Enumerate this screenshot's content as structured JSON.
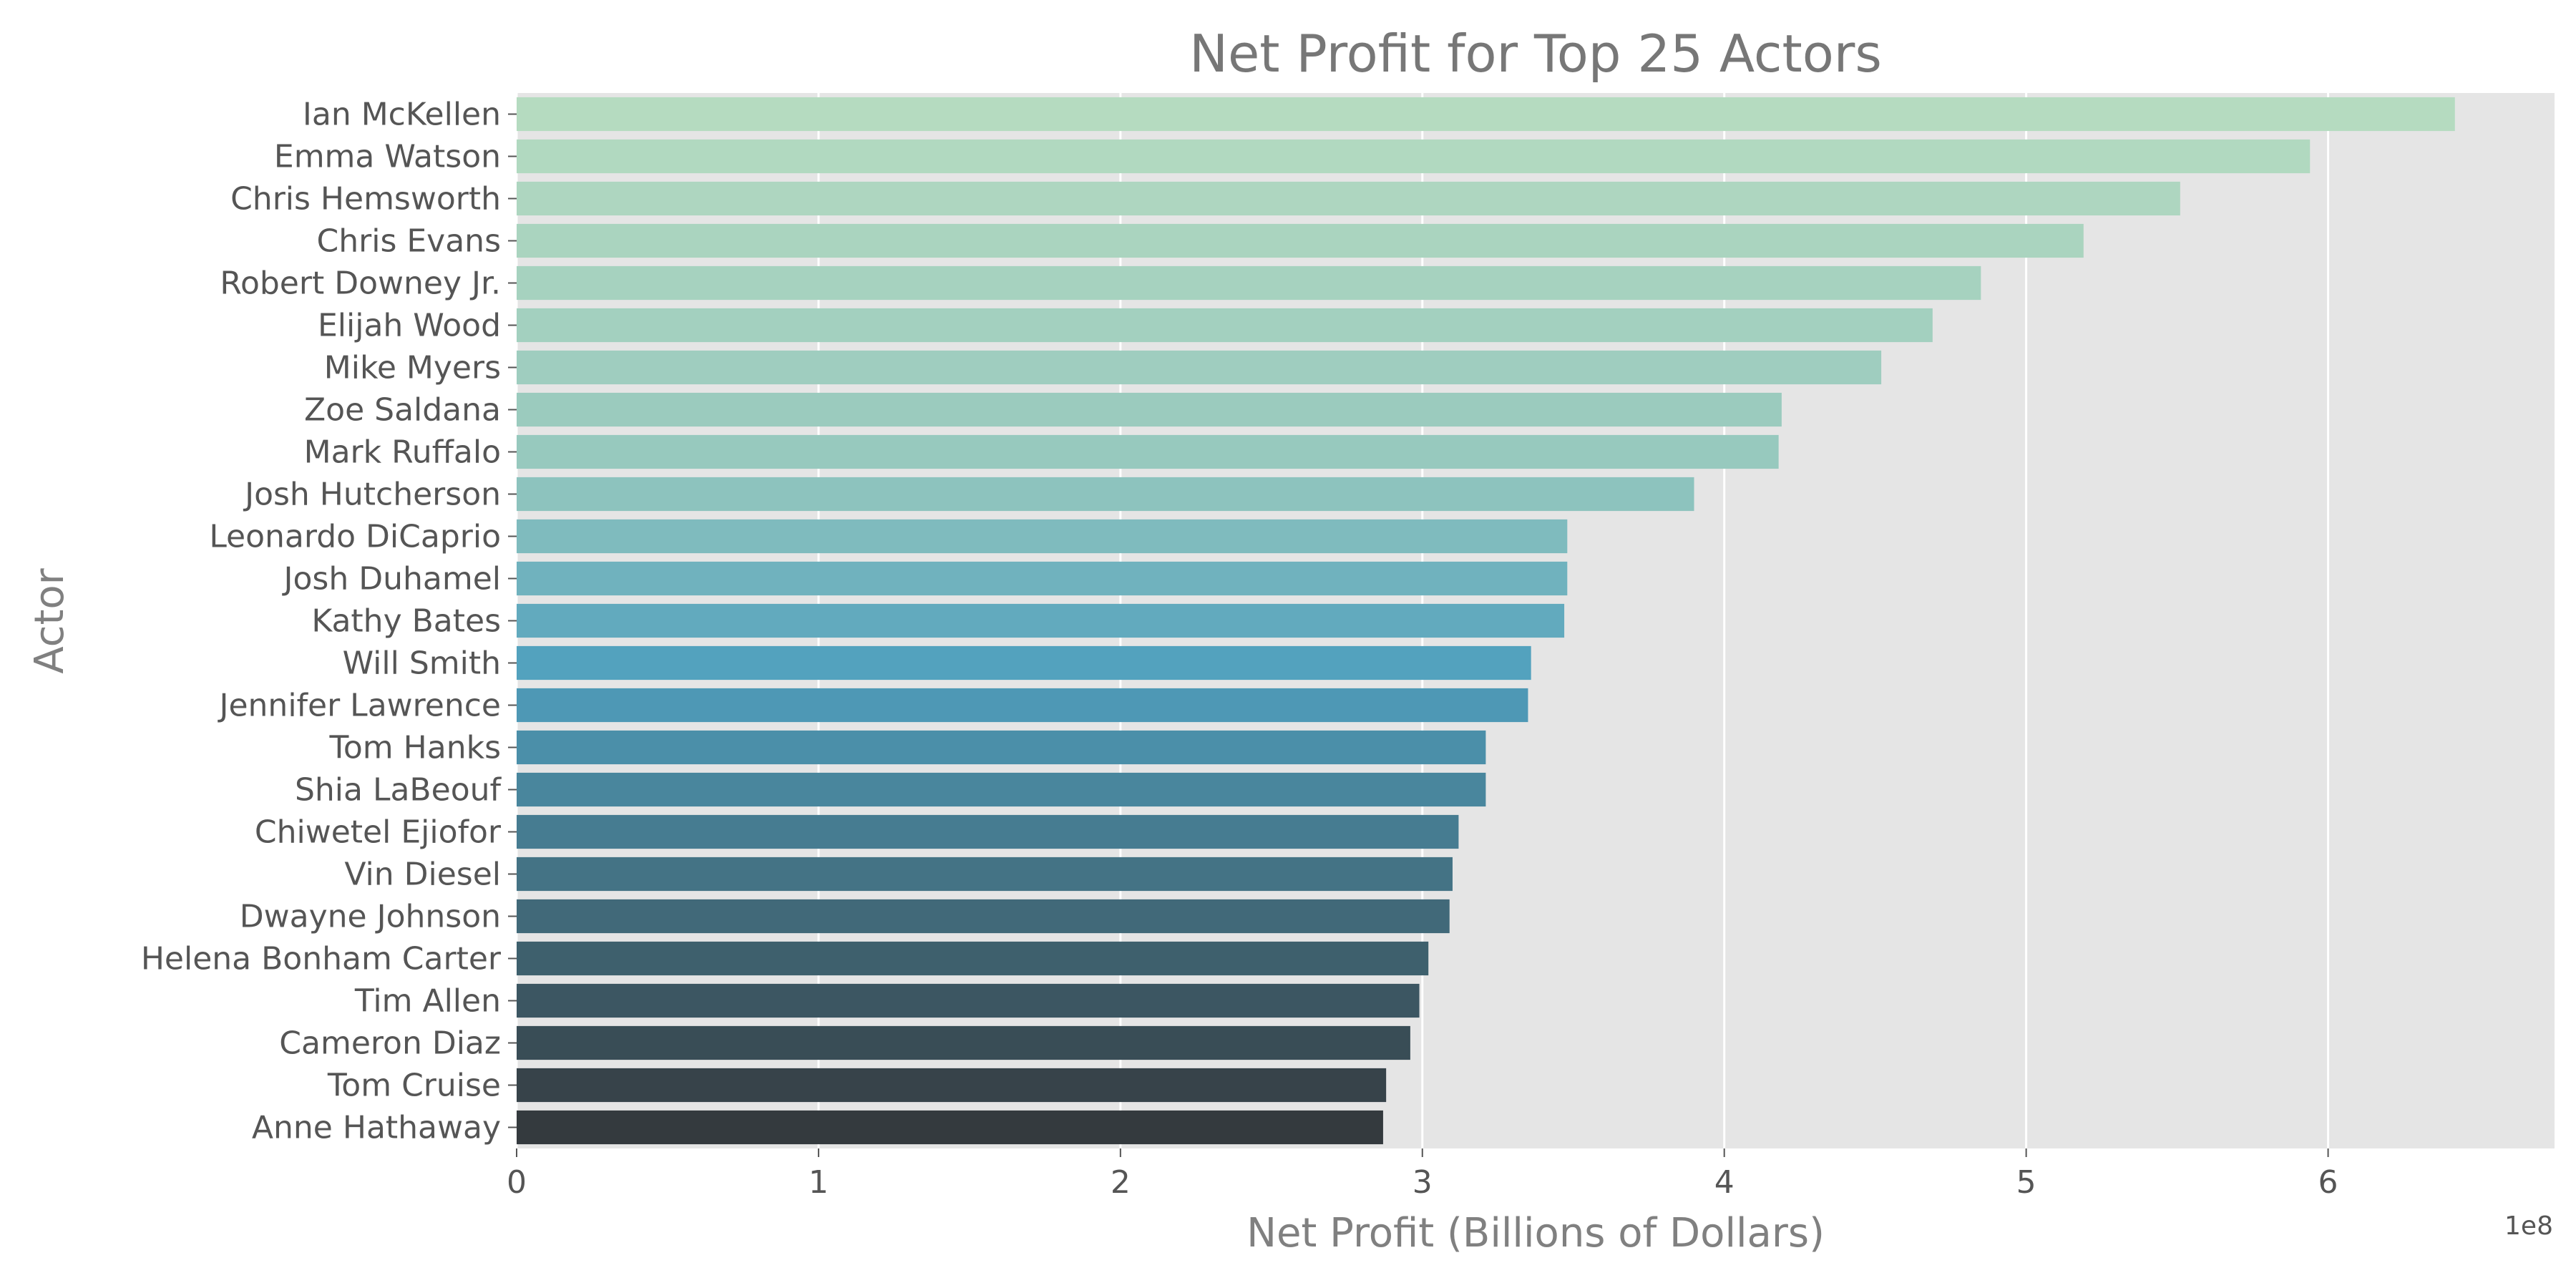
{
  "chart_data": {
    "type": "bar",
    "orientation": "horizontal",
    "title": "Net Profit for Top 25 Actors",
    "xlabel": "Net Profit (Billions of Dollars)",
    "ylabel": "Actor",
    "x_offset_label": "1e8",
    "xlim": [
      0,
      6.75
    ],
    "xticks": [
      "0",
      "1",
      "2",
      "3",
      "4",
      "5",
      "6"
    ],
    "grid": true,
    "categories": [
      "Ian McKellen",
      "Emma Watson",
      "Chris Hemsworth",
      "Chris Evans",
      "Robert Downey Jr.",
      "Elijah Wood",
      "Mike Myers",
      "Zoe Saldana",
      "Mark Ruffalo",
      "Josh Hutcherson",
      "Leonardo DiCaprio",
      "Josh Duhamel",
      "Kathy Bates",
      "Will Smith",
      "Jennifer Lawrence",
      "Tom Hanks",
      "Shia LaBeouf",
      "Chiwetel Ejiofor",
      "Vin Diesel",
      "Dwayne Johnson",
      "Helena Bonham Carter",
      "Tim Allen",
      "Cameron Diaz",
      "Tom Cruise",
      "Anne Hathaway"
    ],
    "values": [
      6.42,
      5.94,
      5.51,
      5.19,
      4.85,
      4.69,
      4.52,
      4.19,
      4.18,
      3.9,
      3.48,
      3.48,
      3.47,
      3.36,
      3.35,
      3.21,
      3.21,
      3.12,
      3.1,
      3.09,
      3.02,
      2.99,
      2.96,
      2.88,
      2.87
    ],
    "palette_start": "#b5dbc0",
    "palette_end": "#343a3e"
  }
}
